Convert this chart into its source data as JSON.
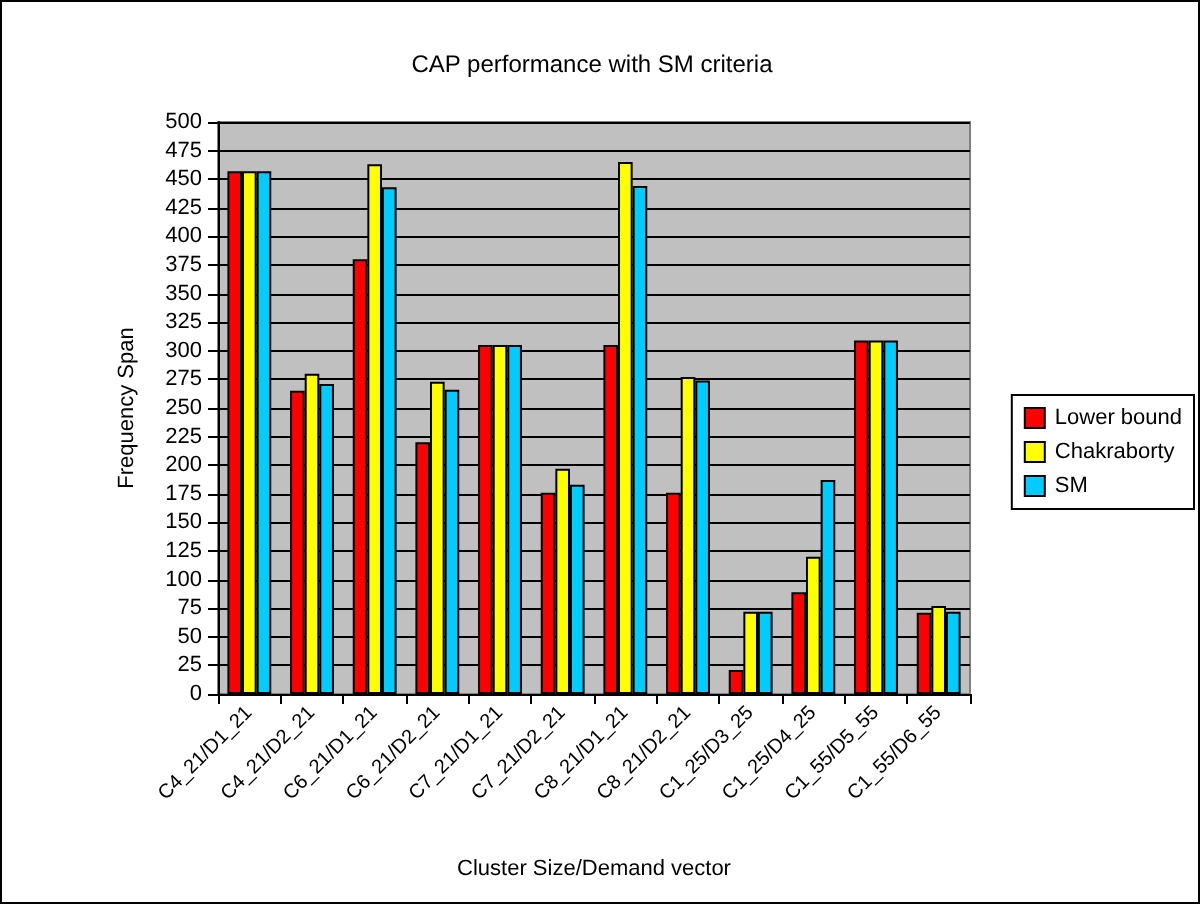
{
  "chart_data": {
    "type": "bar",
    "title": "CAP performance with SM criteria",
    "xlabel": "Cluster Size/Demand vector",
    "ylabel": "Frequency Span",
    "categories": [
      "C4_21/D1_21",
      "C4_21/D2_21",
      "C6_21/D1_21",
      "C6_21/D2_21",
      "C7_21/D1_21",
      "C7_21/D2_21",
      "C8_21/D1_21",
      "C8_21/D2_21",
      "C1_25/D3_25",
      "C1_25/D4_25",
      "C1_55/D5_55",
      "C1_55/D6_55"
    ],
    "series": [
      {
        "name": "Lower bound",
        "color": "#ff0000",
        "values": [
          457,
          265,
          380,
          220,
          305,
          176,
          305,
          176,
          21,
          89,
          309,
          71
        ]
      },
      {
        "name": "Chakraborty",
        "color": "#ffff00",
        "values": [
          457,
          280,
          463,
          273,
          305,
          197,
          465,
          277,
          72,
          120,
          309,
          77
        ]
      },
      {
        "name": "SM",
        "color": "#00ccff",
        "values": [
          457,
          271,
          443,
          266,
          305,
          183,
          444,
          274,
          72,
          187,
          309,
          72
        ]
      }
    ],
    "ylim": [
      0,
      500
    ],
    "yticks": [
      0,
      25,
      50,
      75,
      100,
      125,
      150,
      175,
      200,
      225,
      250,
      275,
      300,
      325,
      350,
      375,
      400,
      425,
      450,
      475,
      500
    ],
    "grid": "y",
    "legend": "right"
  }
}
